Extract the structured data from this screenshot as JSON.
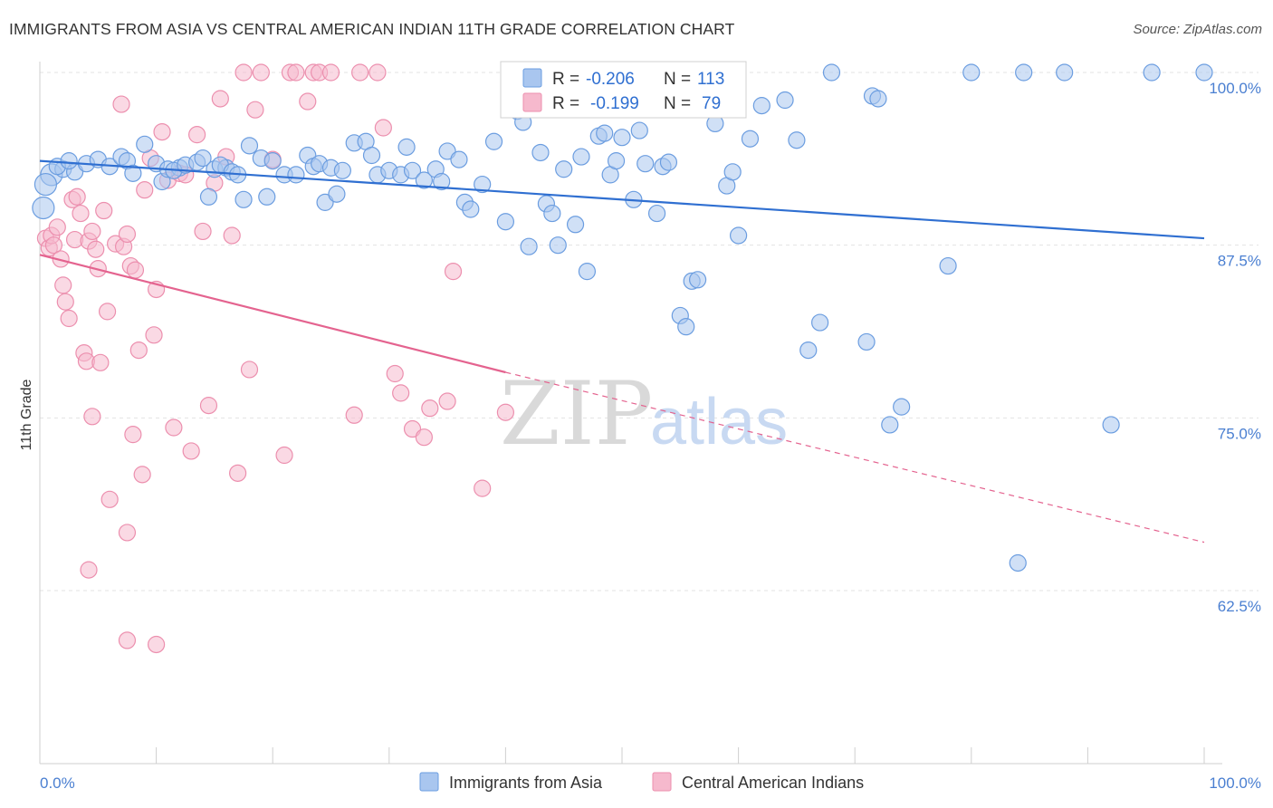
{
  "title": "IMMIGRANTS FROM ASIA VS CENTRAL AMERICAN INDIAN 11TH GRADE CORRELATION CHART",
  "source": "Source: ZipAtlas.com",
  "watermark": {
    "zip": "ZIP",
    "atlas": "atlas"
  },
  "colors": {
    "blue_fill": "#a9c6ef",
    "blue_stroke": "#6b9de0",
    "blue_line": "#2f6fd1",
    "pink_fill": "#f6b9cd",
    "pink_stroke": "#ec8fae",
    "pink_line": "#e4638f",
    "grid": "#e3e3e3",
    "tick_label": "#4a7fd1"
  },
  "legend": {
    "row1": {
      "r_label": "R =",
      "r_value": "-0.206",
      "n_label": "N =",
      "n_value": "113"
    },
    "row2": {
      "r_label": "R =",
      "r_value": "-0.199",
      "n_label": "N =",
      "n_value": "79"
    }
  },
  "chart_data": {
    "type": "scatter",
    "title": "IMMIGRANTS FROM ASIA VS CENTRAL AMERICAN INDIAN 11TH GRADE CORRELATION CHART",
    "xlabel": "",
    "ylabel": "11th Grade",
    "xlim": [
      0,
      100
    ],
    "ylim": [
      52,
      100.5
    ],
    "x_tick_labels": [
      "0.0%",
      "100.0%"
    ],
    "y_ticks": [
      62.5,
      75.0,
      87.5,
      100.0
    ],
    "y_tick_labels": [
      "62.5%",
      "75.0%",
      "87.5%",
      "100.0%"
    ],
    "grid": true,
    "legend_position": "top-center",
    "series": [
      {
        "name": "Immigrants from Asia",
        "color": "#a9c6ef",
        "R": -0.206,
        "N": 113,
        "trend": {
          "x": [
            0,
            100
          ],
          "y": [
            93.6,
            88.0
          ],
          "style": "solid"
        },
        "points": [
          [
            1,
            92.6
          ],
          [
            2,
            93.0
          ],
          [
            3,
            92.8
          ],
          [
            1.5,
            93.2
          ],
          [
            2.5,
            93.6
          ],
          [
            4,
            93.4
          ],
          [
            5,
            93.7
          ],
          [
            6,
            93.2
          ],
          [
            7,
            93.9
          ],
          [
            7.5,
            93.6
          ],
          [
            8,
            92.7
          ],
          [
            9,
            94.8
          ],
          [
            10,
            93.4
          ],
          [
            10.5,
            92.1
          ],
          [
            11,
            93.0
          ],
          [
            12,
            93.1
          ],
          [
            11.5,
            92.9
          ],
          [
            12.5,
            93.3
          ],
          [
            13.5,
            93.5
          ],
          [
            14,
            93.8
          ],
          [
            15,
            93.0
          ],
          [
            16,
            93.1
          ],
          [
            14.5,
            91.0
          ],
          [
            15.5,
            93.3
          ],
          [
            16.5,
            92.8
          ],
          [
            17,
            92.6
          ],
          [
            18,
            94.7
          ],
          [
            19,
            93.8
          ],
          [
            17.5,
            90.8
          ],
          [
            19.5,
            91.0
          ],
          [
            20,
            93.6
          ],
          [
            21,
            92.6
          ],
          [
            22,
            92.6
          ],
          [
            23,
            94.0
          ],
          [
            23.5,
            93.2
          ],
          [
            24,
            93.4
          ],
          [
            25,
            93.1
          ],
          [
            26,
            92.9
          ],
          [
            24.5,
            90.6
          ],
          [
            25.5,
            91.2
          ],
          [
            27,
            94.9
          ],
          [
            28,
            95.0
          ],
          [
            28.5,
            94.0
          ],
          [
            29,
            92.6
          ],
          [
            30,
            92.9
          ],
          [
            31,
            92.6
          ],
          [
            31.5,
            94.6
          ],
          [
            32,
            92.9
          ],
          [
            33,
            92.2
          ],
          [
            34,
            93.0
          ],
          [
            35,
            94.3
          ],
          [
            34.5,
            92.1
          ],
          [
            36,
            93.7
          ],
          [
            36.5,
            90.6
          ],
          [
            37,
            90.1
          ],
          [
            38,
            91.9
          ],
          [
            39,
            95.0
          ],
          [
            40,
            89.2
          ],
          [
            41,
            97.2
          ],
          [
            41.5,
            96.4
          ],
          [
            42,
            87.4
          ],
          [
            43,
            94.2
          ],
          [
            43.5,
            90.5
          ],
          [
            44,
            89.8
          ],
          [
            44.5,
            87.5
          ],
          [
            45,
            93.0
          ],
          [
            46,
            89.0
          ],
          [
            46.5,
            93.9
          ],
          [
            47,
            85.6
          ],
          [
            48,
            95.4
          ],
          [
            48.5,
            95.6
          ],
          [
            49,
            92.6
          ],
          [
            49.5,
            93.6
          ],
          [
            50,
            95.3
          ],
          [
            51,
            90.8
          ],
          [
            51.5,
            95.8
          ],
          [
            52,
            93.4
          ],
          [
            53,
            89.8
          ],
          [
            53.5,
            93.2
          ],
          [
            54,
            93.5
          ],
          [
            55,
            82.4
          ],
          [
            55.5,
            81.6
          ],
          [
            56,
            84.9
          ],
          [
            56.5,
            85.0
          ],
          [
            57,
            98.2
          ],
          [
            58,
            96.3
          ],
          [
            59,
            91.8
          ],
          [
            59.5,
            92.8
          ],
          [
            60,
            88.2
          ],
          [
            61,
            95.2
          ],
          [
            62,
            97.6
          ],
          [
            64,
            98.0
          ],
          [
            65,
            95.1
          ],
          [
            66,
            79.9
          ],
          [
            67,
            81.9
          ],
          [
            68,
            100.0
          ],
          [
            71,
            80.5
          ],
          [
            71.5,
            98.3
          ],
          [
            72,
            98.1
          ],
          [
            73,
            74.5
          ],
          [
            74,
            75.8
          ],
          [
            78,
            86.0
          ],
          [
            80,
            100.0
          ],
          [
            84,
            64.5
          ],
          [
            84.5,
            100.0
          ],
          [
            88,
            100.0
          ],
          [
            92,
            74.5
          ],
          [
            95.5,
            100.0
          ],
          [
            100,
            100.0
          ],
          [
            0.5,
            91.9
          ],
          [
            0.3,
            90.2
          ]
        ]
      },
      {
        "name": "Central American Indians",
        "color": "#f6b9cd",
        "R": -0.199,
        "N": 79,
        "trend": {
          "x": [
            0,
            40,
            100
          ],
          "y": [
            86.8,
            78.3,
            66.0
          ],
          "style": "solid-then-dashed"
        },
        "points": [
          [
            0.5,
            88.0
          ],
          [
            0.8,
            87.3
          ],
          [
            1,
            88.2
          ],
          [
            1.2,
            87.5
          ],
          [
            1.5,
            88.8
          ],
          [
            1.8,
            86.5
          ],
          [
            2,
            84.6
          ],
          [
            2.2,
            83.4
          ],
          [
            2.5,
            82.2
          ],
          [
            2.8,
            90.8
          ],
          [
            3,
            87.9
          ],
          [
            3.2,
            91.0
          ],
          [
            3.5,
            89.8
          ],
          [
            3.8,
            79.7
          ],
          [
            4,
            79.1
          ],
          [
            4.2,
            87.8
          ],
          [
            4.5,
            88.5
          ],
          [
            4.8,
            87.2
          ],
          [
            5,
            85.8
          ],
          [
            5.2,
            79.0
          ],
          [
            5.5,
            90.0
          ],
          [
            5.8,
            82.7
          ],
          [
            6,
            69.1
          ],
          [
            6.5,
            87.6
          ],
          [
            7,
            97.7
          ],
          [
            7.2,
            87.4
          ],
          [
            7.5,
            88.3
          ],
          [
            7.8,
            86.0
          ],
          [
            8,
            73.8
          ],
          [
            8.2,
            85.7
          ],
          [
            8.5,
            79.9
          ],
          [
            8.8,
            70.9
          ],
          [
            9,
            91.5
          ],
          [
            9.5,
            93.8
          ],
          [
            9.8,
            81.0
          ],
          [
            10,
            84.3
          ],
          [
            10.5,
            95.7
          ],
          [
            11,
            92.2
          ],
          [
            11.5,
            74.3
          ],
          [
            12,
            92.7
          ],
          [
            12.5,
            92.6
          ],
          [
            13,
            72.6
          ],
          [
            13.5,
            95.5
          ],
          [
            14,
            88.5
          ],
          [
            14.5,
            75.9
          ],
          [
            15,
            92.0
          ],
          [
            15.5,
            98.1
          ],
          [
            16,
            93.9
          ],
          [
            16.5,
            88.2
          ],
          [
            17,
            71.0
          ],
          [
            17.5,
            100.0
          ],
          [
            18,
            78.5
          ],
          [
            18.5,
            97.3
          ],
          [
            19,
            100.0
          ],
          [
            20,
            93.7
          ],
          [
            21,
            72.3
          ],
          [
            21.5,
            100.0
          ],
          [
            22,
            100.0
          ],
          [
            23,
            97.9
          ],
          [
            23.5,
            100.0
          ],
          [
            24,
            100.0
          ],
          [
            25,
            100.0
          ],
          [
            27,
            75.2
          ],
          [
            27.5,
            100.0
          ],
          [
            29,
            100.0
          ],
          [
            29.5,
            96.0
          ],
          [
            30.5,
            78.2
          ],
          [
            31,
            76.8
          ],
          [
            32,
            74.2
          ],
          [
            33,
            73.6
          ],
          [
            33.5,
            75.7
          ],
          [
            35,
            76.2
          ],
          [
            35.5,
            85.6
          ],
          [
            38,
            69.9
          ],
          [
            40,
            75.4
          ],
          [
            4.5,
            75.1
          ],
          [
            4.2,
            64.0
          ],
          [
            7.5,
            66.7
          ],
          [
            7.5,
            58.9
          ],
          [
            10,
            58.6
          ]
        ]
      }
    ]
  },
  "bottom_legend": [
    "Immigrants from Asia",
    "Central American Indians"
  ]
}
